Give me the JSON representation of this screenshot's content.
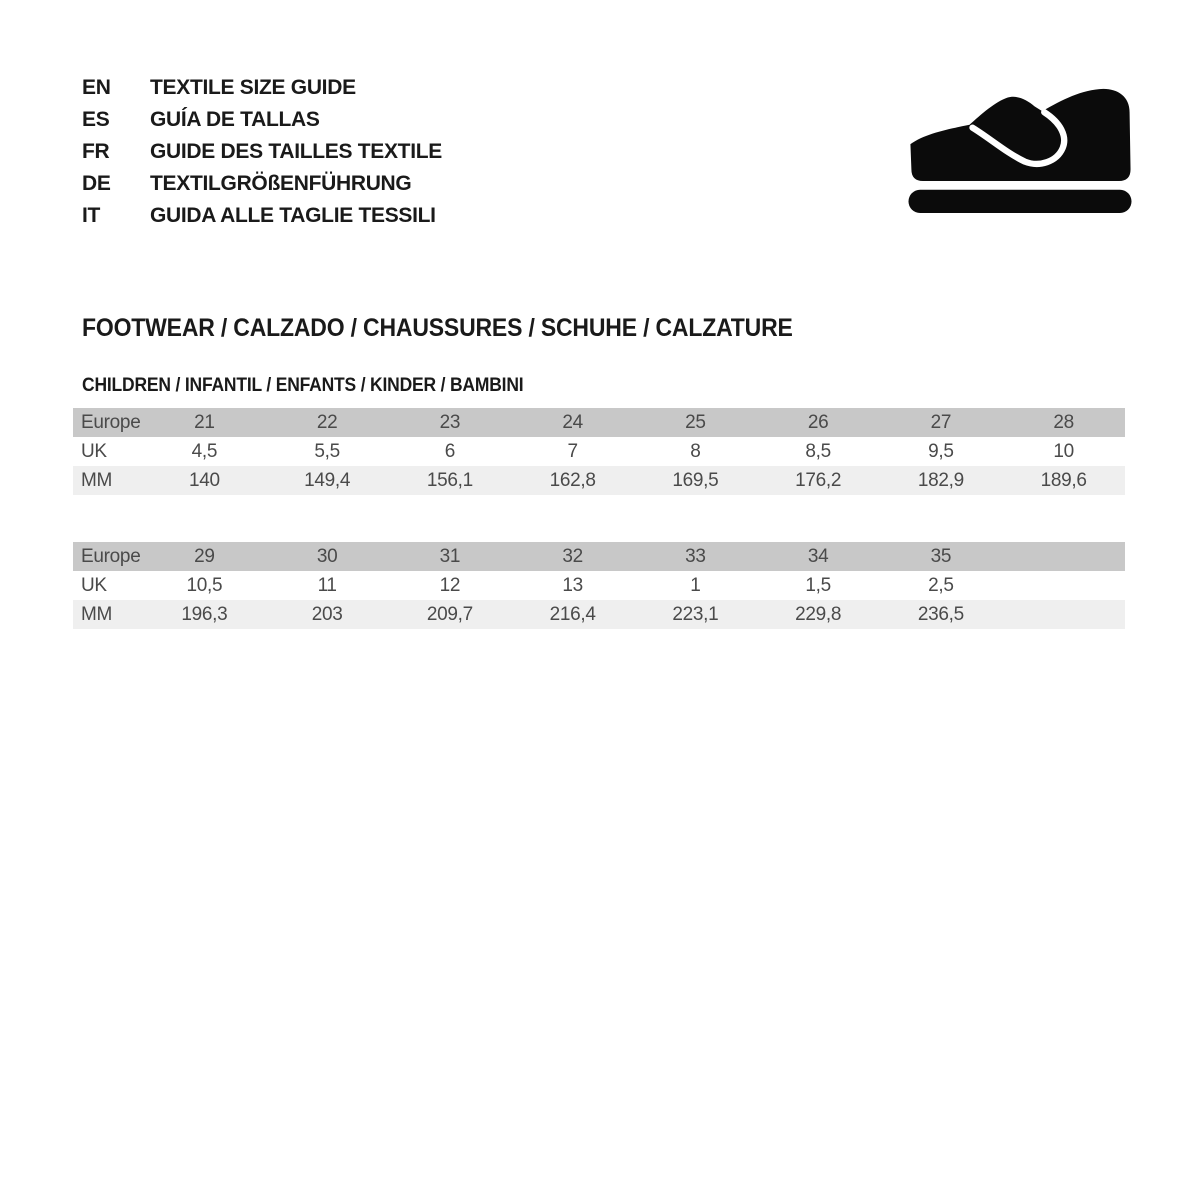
{
  "colors": {
    "header_row": "#c8c8c8",
    "mm_row": "#efefef",
    "table_text": "#4a4a4a",
    "heading_text": "#1a1a1a",
    "icon_color": "#0b0b0b"
  },
  "languages": [
    {
      "code": "EN",
      "label": "TEXTILE SIZE GUIDE"
    },
    {
      "code": "ES",
      "label": "GUÍA DE TALLAS"
    },
    {
      "code": "FR",
      "label": "GUIDE DES TAILLES TEXTILE"
    },
    {
      "code": "DE",
      "label": "TEXTILGRÖßENFÜHRUNG"
    },
    {
      "code": "IT",
      "label": "GUIDA ALLE TAGLIE TESSILI"
    }
  ],
  "icons": {
    "shoe": "children-shoe-icon"
  },
  "section": {
    "title": "FOOTWEAR / CALZADO / CHAUSSURES / SCHUHE / CALZATURE",
    "subtitle": "CHILDREN / INFANTIL / ENFANTS / KINDER / BAMBINI"
  },
  "tables": [
    {
      "rows": [
        {
          "label": "Europe",
          "values": [
            "21",
            "22",
            "23",
            "24",
            "25",
            "26",
            "27",
            "28"
          ]
        },
        {
          "label": "UK",
          "values": [
            "4,5",
            "5,5",
            "6",
            "7",
            "8",
            "8,5",
            "9,5",
            "10"
          ]
        },
        {
          "label": "MM",
          "values": [
            "140",
            "149,4",
            "156,1",
            "162,8",
            "169,5",
            "176,2",
            "182,9",
            "189,6"
          ]
        }
      ]
    },
    {
      "rows": [
        {
          "label": "Europe",
          "values": [
            "29",
            "30",
            "31",
            "32",
            "33",
            "34",
            "35",
            ""
          ]
        },
        {
          "label": "UK",
          "values": [
            "10,5",
            "11",
            "12",
            "13",
            "1",
            "1,5",
            "2,5",
            ""
          ]
        },
        {
          "label": "MM",
          "values": [
            "196,3",
            "203",
            "209,7",
            "216,4",
            "223,1",
            "229,8",
            "236,5",
            ""
          ]
        }
      ]
    }
  ]
}
